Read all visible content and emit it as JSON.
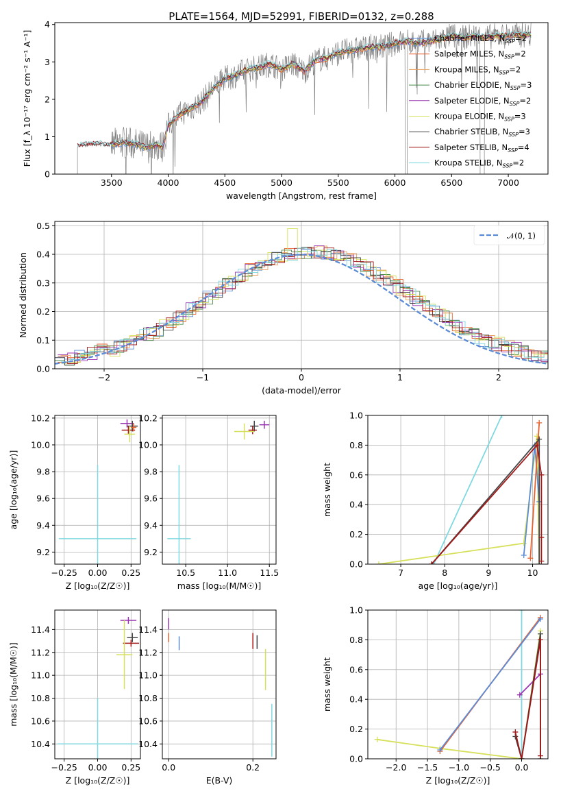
{
  "title": "PLATE=1564, MJD=52991, FIBERID=0132, z=0.288",
  "colors": {
    "chabrier_miles": "#5b8bd6",
    "salpeter_miles": "#e8612c",
    "kroupa_miles": "#e8a060",
    "chabrier_elodie": "#4a8a4a",
    "salpeter_elodie": "#9a35b0",
    "kroupa_elodie": "#d6e05a",
    "chabrier_stelib": "#444444",
    "salpeter_stelib": "#a01818",
    "kroupa_stelib": "#80d8e0",
    "data": "#808080",
    "normal": "#5b8bd6",
    "grid": "#b0b0b0"
  },
  "chart_data": [
    {
      "id": "spectrum",
      "type": "line",
      "xlabel": "wavelength [Angstrom, rest frame]",
      "ylabel": "Flux [f_λ 10⁻¹⁷ erg cm⁻² s⁻¹ A⁻¹]",
      "xlim": [
        3000,
        7350
      ],
      "ylim": [
        0,
        4.05
      ],
      "xticks": [
        "3500",
        "4000",
        "4500",
        "5000",
        "5500",
        "6000",
        "6500",
        "7000"
      ],
      "yticks": [
        "0",
        "1",
        "2",
        "3",
        "4"
      ],
      "legend_position": "top-right",
      "legend": [
        {
          "text": "Chabrier MILES, N",
          "sub": "SSP",
          "tail": "=2",
          "color": "chabrier_miles"
        },
        {
          "text": "Salpeter MILES, N",
          "sub": "SSP",
          "tail": "=2",
          "color": "salpeter_miles"
        },
        {
          "text": "Kroupa MILES, N",
          "sub": "SSP",
          "tail": "=2",
          "color": "kroupa_miles"
        },
        {
          "text": "Chabrier ELODIE, N",
          "sub": "SSP",
          "tail": "=3",
          "color": "chabrier_elodie"
        },
        {
          "text": "Salpeter ELODIE, N",
          "sub": "SSP",
          "tail": "=2",
          "color": "salpeter_elodie"
        },
        {
          "text": "Kroupa ELODIE, N",
          "sub": "SSP",
          "tail": "=3",
          "color": "kroupa_elodie"
        },
        {
          "text": "Chabrier STELIB, N",
          "sub": "SSP",
          "tail": "=3",
          "color": "chabrier_stelib"
        },
        {
          "text": "Salpeter STELIB, N",
          "sub": "SSP",
          "tail": "=4",
          "color": "salpeter_stelib"
        },
        {
          "text": "Kroupa STELIB, N",
          "sub": "SSP",
          "tail": "=2",
          "color": "kroupa_stelib"
        }
      ],
      "model_continuum": [
        [
          3200,
          0.75
        ],
        [
          3300,
          0.78
        ],
        [
          3400,
          0.8
        ],
        [
          3500,
          0.78
        ],
        [
          3600,
          0.85
        ],
        [
          3700,
          0.8
        ],
        [
          3800,
          0.72
        ],
        [
          3900,
          0.78
        ],
        [
          3950,
          0.72
        ],
        [
          4000,
          1.3
        ],
        [
          4100,
          1.6
        ],
        [
          4200,
          1.75
        ],
        [
          4300,
          1.95
        ],
        [
          4400,
          2.3
        ],
        [
          4500,
          2.55
        ],
        [
          4600,
          2.65
        ],
        [
          4700,
          2.8
        ],
        [
          4800,
          2.85
        ],
        [
          4900,
          2.95
        ],
        [
          5000,
          2.8
        ],
        [
          5100,
          2.95
        ],
        [
          5200,
          2.75
        ],
        [
          5300,
          3.05
        ],
        [
          5400,
          3.1
        ],
        [
          5500,
          3.25
        ],
        [
          5600,
          3.3
        ],
        [
          5700,
          3.35
        ],
        [
          5800,
          3.4
        ],
        [
          5900,
          3.4
        ],
        [
          6000,
          3.5
        ],
        [
          6100,
          3.55
        ],
        [
          6200,
          3.5
        ],
        [
          6300,
          3.55
        ],
        [
          6400,
          3.6
        ],
        [
          6500,
          3.7
        ],
        [
          6600,
          3.65
        ],
        [
          6700,
          3.7
        ],
        [
          6800,
          3.65
        ],
        [
          6900,
          3.7
        ],
        [
          7000,
          3.7
        ],
        [
          7100,
          3.72
        ],
        [
          7200,
          3.72
        ]
      ]
    },
    {
      "id": "residuals",
      "type": "line",
      "xlabel": "(data-model)/error",
      "ylabel": "Normed distribution",
      "xlim": [
        -2.5,
        2.5
      ],
      "ylim": [
        0,
        0.515
      ],
      "xticks": [
        "−2",
        "−1",
        "0",
        "1",
        "2"
      ],
      "yticks": [
        "0.0",
        "0.1",
        "0.2",
        "0.3",
        "0.4",
        "0.5"
      ],
      "legend_position": "top-right",
      "legend_label": "𝒩(0, 1)",
      "series": [
        {
          "name": "𝒩(0, 1)",
          "style": "dashed",
          "function": "gaussian",
          "mu": 0,
          "sigma": 1
        }
      ],
      "histogram_bin_width": 0.1
    },
    {
      "id": "age_vs_z",
      "type": "scatter",
      "xlabel": "Z [log₁₀(Z/Z☉)]",
      "ylabel": "age  [log₁₀(age/yr)]",
      "xlim": [
        -0.32,
        0.32
      ],
      "ylim": [
        9.11,
        10.22
      ],
      "xticks": [
        "−0.25",
        "0.00",
        "0.25"
      ],
      "yticks": [
        "9.2",
        "9.4",
        "9.6",
        "9.8",
        "10.0",
        "10.2"
      ],
      "points": [
        {
          "x": 0.22,
          "y": 10.16,
          "xerr": 0.05,
          "yerr": 0.03,
          "color": "salpeter_elodie"
        },
        {
          "x": 0.26,
          "y": 10.14,
          "xerr": 0.04,
          "yerr": 0.04,
          "color": "chabrier_stelib"
        },
        {
          "x": 0.23,
          "y": 10.11,
          "xerr": 0.05,
          "yerr": 0.03,
          "color": "salpeter_stelib"
        },
        {
          "x": 0.24,
          "y": 10.08,
          "xerr": 0.04,
          "yerr": 0.06,
          "color": "kroupa_elodie"
        },
        {
          "x": 0.27,
          "y": 10.13,
          "xerr": 0.02,
          "yerr": 0.03,
          "color": "salpeter_miles"
        },
        {
          "x": 0.0,
          "y": 9.3,
          "xerr": 0.29,
          "yerr": 0.55,
          "color": "kroupa_stelib"
        }
      ]
    },
    {
      "id": "age_vs_mass",
      "type": "scatter",
      "xlabel": "mass [log₁₀(M/M☉)]",
      "ylabel": "",
      "xlim": [
        10.22,
        11.58
      ],
      "ylim": [
        9.11,
        10.22
      ],
      "xticks": [
        "10.5",
        "11.0",
        "11.5"
      ],
      "yticks": [
        "9.2",
        "9.4",
        "9.6",
        "9.8",
        "10.0",
        "10.2"
      ],
      "points": [
        {
          "x": 11.44,
          "y": 10.15,
          "xerr": 0.06,
          "yerr": 0.03,
          "color": "salpeter_elodie"
        },
        {
          "x": 11.32,
          "y": 10.14,
          "xerr": 0.05,
          "yerr": 0.04,
          "color": "chabrier_stelib"
        },
        {
          "x": 11.3,
          "y": 10.11,
          "xerr": 0.05,
          "yerr": 0.03,
          "color": "salpeter_stelib"
        },
        {
          "x": 11.2,
          "y": 10.1,
          "xerr": 0.12,
          "yerr": 0.06,
          "color": "kroupa_elodie"
        },
        {
          "x": 10.42,
          "y": 9.3,
          "xerr": 0.14,
          "yerr": 0.55,
          "color": "kroupa_stelib"
        }
      ]
    },
    {
      "id": "mass_weight_vs_age",
      "type": "line",
      "xlabel": "age  [log₁₀(age/yr)]",
      "ylabel": "mass weight",
      "xlim": [
        6.25,
        10.35
      ],
      "ylim": [
        0,
        1.0
      ],
      "xticks": [
        "7",
        "8",
        "9",
        "10"
      ],
      "yticks": [
        "0.0",
        "0.2",
        "0.4",
        "0.6",
        "0.8",
        "1.0"
      ],
      "series": [
        {
          "color": "kroupa_stelib",
          "points": [
            [
              7.75,
              0.0
            ],
            [
              9.3,
              1.0
            ]
          ]
        },
        {
          "color": "kroupa_elodie",
          "points": [
            [
              6.5,
              0.0
            ],
            [
              9.8,
              0.14
            ],
            [
              10.1,
              0.86
            ],
            [
              10.15,
              0.0
            ]
          ]
        },
        {
          "color": "chabrier_miles",
          "points": [
            [
              9.8,
              0.06
            ],
            [
              10.05,
              0.8
            ],
            [
              10.15,
              0.42
            ]
          ]
        },
        {
          "color": "salpeter_miles",
          "points": [
            [
              9.95,
              0.04
            ],
            [
              10.15,
              0.95
            ]
          ]
        },
        {
          "color": "chabrier_stelib",
          "points": [
            [
              7.7,
              0.0
            ],
            [
              10.15,
              0.84
            ],
            [
              10.15,
              0.0
            ]
          ]
        },
        {
          "color": "salpeter_stelib",
          "points": [
            [
              7.7,
              0.0
            ],
            [
              10.1,
              0.8
            ],
            [
              10.2,
              0.6
            ],
            [
              10.2,
              0.18
            ],
            [
              10.2,
              0.02
            ]
          ]
        }
      ]
    },
    {
      "id": "mass_vs_z",
      "type": "scatter",
      "xlabel": "Z [log₁₀(Z/Z☉)]",
      "ylabel": "mass [log₁₀(M/M☉)]",
      "xlim": [
        -0.32,
        0.32
      ],
      "ylim": [
        10.27,
        11.57
      ],
      "xticks": [
        "−0.25",
        "0.00",
        "0.25"
      ],
      "yticks": [
        "10.4",
        "10.6",
        "10.8",
        "11.0",
        "11.2",
        "11.4"
      ],
      "points": [
        {
          "x": 0.23,
          "y": 11.48,
          "xerr": 0.06,
          "yerr": 0.03,
          "color": "salpeter_elodie"
        },
        {
          "x": 0.26,
          "y": 11.33,
          "xerr": 0.04,
          "yerr": 0.04,
          "color": "chabrier_stelib"
        },
        {
          "x": 0.25,
          "y": 11.28,
          "xerr": 0.06,
          "yerr": 0.03,
          "color": "salpeter_stelib"
        },
        {
          "x": 0.2,
          "y": 11.18,
          "xerr": 0.06,
          "yerr": 0.3,
          "color": "kroupa_elodie"
        },
        {
          "x": 0.0,
          "y": 10.4,
          "xerr": 0.3,
          "yerr": 0.4,
          "color": "kroupa_stelib"
        }
      ]
    },
    {
      "id": "mass_vs_ebv",
      "type": "scatter",
      "xlabel": "E(B-V)",
      "ylabel": "",
      "xlim": [
        -0.015,
        0.255
      ],
      "ylim": [
        10.27,
        11.57
      ],
      "xticks": [
        "0.0",
        "0.2"
      ],
      "yticks": [
        "10.4",
        "10.6",
        "10.8",
        "11.0",
        "11.2",
        "11.4"
      ],
      "points": [
        {
          "x": 0.0,
          "y": 11.45,
          "yerr": 0.05,
          "color": "salpeter_elodie"
        },
        {
          "x": 0.0,
          "y": 11.33,
          "yerr": 0.04,
          "color": "salpeter_miles"
        },
        {
          "x": 0.025,
          "y": 11.28,
          "yerr": 0.06,
          "color": "chabrier_miles"
        },
        {
          "x": 0.2,
          "y": 11.3,
          "yerr": 0.07,
          "color": "salpeter_stelib"
        },
        {
          "x": 0.21,
          "y": 11.29,
          "yerr": 0.06,
          "color": "chabrier_stelib"
        },
        {
          "x": 0.23,
          "y": 11.05,
          "yerr": 0.18,
          "color": "kroupa_elodie"
        },
        {
          "x": 0.245,
          "y": 10.52,
          "yerr": 0.23,
          "color": "kroupa_stelib"
        }
      ]
    },
    {
      "id": "mass_weight_vs_z",
      "type": "line",
      "xlabel": "Z [log₁₀(Z/Z☉)]",
      "ylabel": "mass weight",
      "xlim": [
        -2.45,
        0.42
      ],
      "ylim": [
        0,
        1.0
      ],
      "xticks": [
        "−2.0",
        "−1.5",
        "−1.0",
        "−0.5",
        "0.0"
      ],
      "yticks": [
        "0.0",
        "0.2",
        "0.4",
        "0.6",
        "0.8",
        "1.0"
      ],
      "series": [
        {
          "color": "kroupa_elodie",
          "points": [
            [
              -2.3,
              0.13
            ],
            [
              -1.3,
              0.07
            ],
            [
              0.0,
              0.0
            ],
            [
              0.3,
              0.86
            ]
          ]
        },
        {
          "color": "kroupa_stelib",
          "points": [
            [
              0.0,
              1.0
            ],
            [
              0.0,
              0.0
            ]
          ]
        },
        {
          "color": "salpeter_miles",
          "points": [
            [
              -1.3,
              0.05
            ],
            [
              0.3,
              0.95
            ]
          ]
        },
        {
          "color": "chabrier_miles",
          "points": [
            [
              -1.3,
              0.06
            ],
            [
              0.3,
              0.94
            ]
          ]
        },
        {
          "color": "salpeter_elodie",
          "points": [
            [
              -0.03,
              0.43
            ],
            [
              0.3,
              0.57
            ]
          ]
        },
        {
          "color": "chabrier_stelib",
          "points": [
            [
              -0.1,
              0.15
            ],
            [
              0.0,
              0.0
            ],
            [
              0.3,
              0.84
            ],
            [
              0.3,
              0.0
            ]
          ]
        },
        {
          "color": "salpeter_stelib",
          "points": [
            [
              -0.1,
              0.18
            ],
            [
              0.0,
              0.0
            ],
            [
              0.3,
              0.8
            ],
            [
              0.3,
              0.02
            ]
          ]
        }
      ]
    }
  ]
}
